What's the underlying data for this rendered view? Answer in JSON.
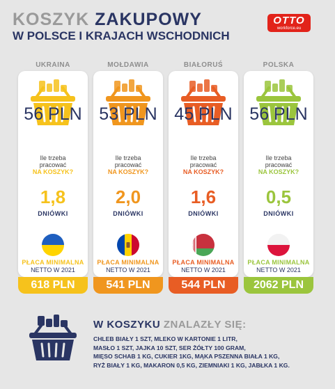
{
  "title": {
    "part1": "KOSZYK ",
    "part2": "ZAKUPOWY",
    "subtitle": "W POLSCE I KRAJACH WSCHODNICH"
  },
  "logo": {
    "brand": "OTTO",
    "sub": "workforce.eu"
  },
  "colors": {
    "navy": "#2a3563",
    "grey": "#9a9a9a"
  },
  "countries": [
    {
      "name": "UKRAINA",
      "price": "56 PLN",
      "question_line1": "Ile trzeba",
      "question_line2": "pracować",
      "question_highlight": "NA KOSZYK?",
      "days": "1,8",
      "days_label": "DNIÓWKI",
      "min_label": "PŁACA MINIMALNA",
      "min_sub": "NETTO W 2021",
      "min_value": "618 PLN",
      "color": "#f6c21c",
      "flag": "ukraine-flag"
    },
    {
      "name": "MOŁDAWIA",
      "price": "53 PLN",
      "question_line1": "Ile trzeba",
      "question_line2": "pracować",
      "question_highlight": "NA KOSZYK?",
      "days": "2,0",
      "days_label": "DNIÓWKI",
      "min_label": "PŁACA MINIMALNA",
      "min_sub": "NETTO W 2021",
      "min_value": "541 PLN",
      "color": "#f0961e",
      "flag": "moldova-flag"
    },
    {
      "name": "BIAŁORUŚ",
      "price": "45 PLN",
      "question_line1": "Ile trzeba",
      "question_line2": "pracować",
      "question_highlight": "NA KOSZYK?",
      "days": "1,6",
      "days_label": "DNIÓWKI",
      "min_label": "PŁACA MINIMALNA",
      "min_sub": "NETTO W 2021",
      "min_value": "544 PLN",
      "color": "#e85d24",
      "flag": "belarus-flag"
    },
    {
      "name": "POLSKA",
      "price": "56 PLN",
      "question_line1": "Ile trzeba",
      "question_line2": "pracować",
      "question_highlight": "NA KOSZYK?",
      "days": "0,5",
      "days_label": "DNIÓWKI",
      "min_label": "PŁACA MINIMALNA",
      "min_sub": "NETTO W 2021",
      "min_value": "2062 PLN",
      "color": "#9bc53d",
      "flag": "poland-flag"
    }
  ],
  "basket_box": {
    "title_part1": "W KOSZYKU ",
    "title_part2": "ZNALAZŁY SIĘ:",
    "lines": [
      "CHLEB BIAŁY  1 SZT, MLEKO W KARTONIE  1 LITR,",
      "MASŁO 1 SZT,  JAJKA  10 SZT, SER ŻÓŁTY 100 GRAM,",
      "MIĘSO SCHAB 1 KG, CUKIER 1KG, MĄKA PSZENNA BIAŁA 1 KG,",
      "RYŻ BIAŁY 1 KG, MAKARON 0,5 KG, ZIEMNIAKI 1 KG, JABŁKA 1 KG."
    ]
  }
}
